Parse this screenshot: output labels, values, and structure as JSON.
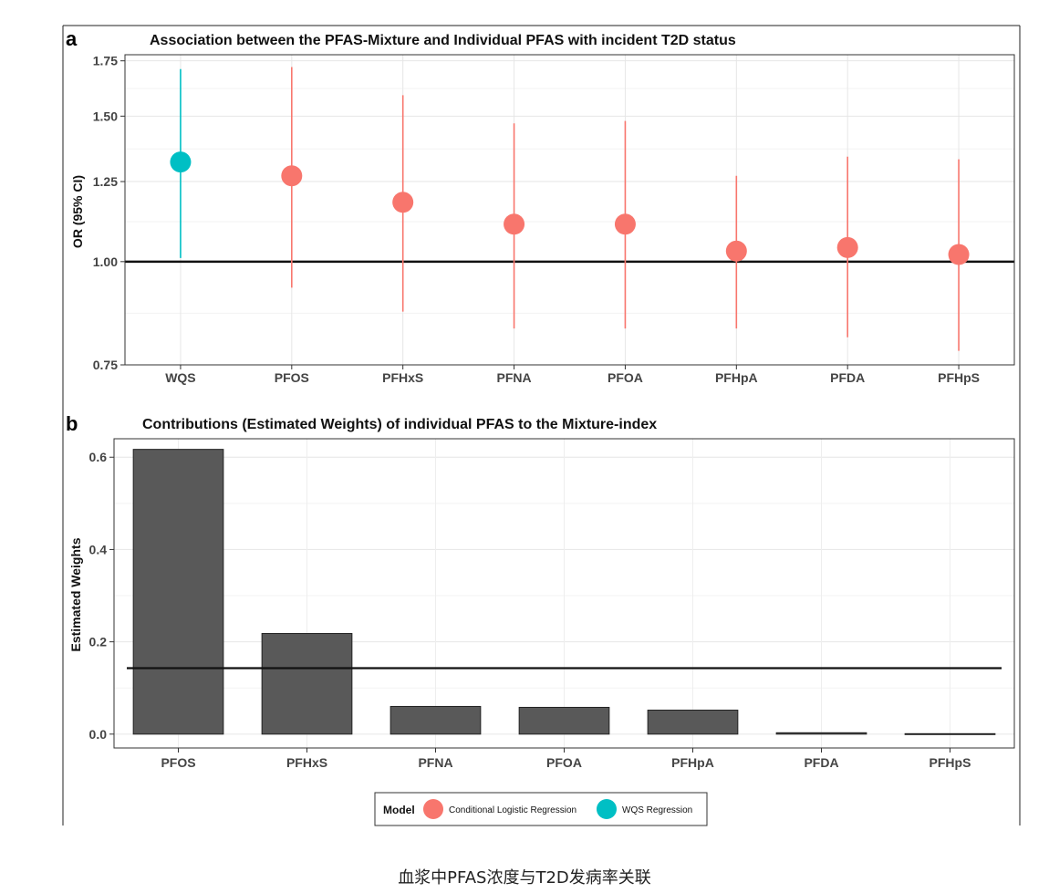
{
  "caption": "血浆中PFAS浓度与T2D发病率关联",
  "legend": {
    "title": "Model",
    "entries": [
      {
        "label": "Conditional Logistic Regression",
        "color": "#F8766D"
      },
      {
        "label": "WQS Regression",
        "color": "#00BFC4"
      }
    ]
  },
  "chart_data": [
    {
      "panel": "a",
      "type": "scatter",
      "title": "Association between the PFAS-Mixture and Individual PFAS with incident T2D status",
      "xlabel": "",
      "ylabel": "OR (95% CI)",
      "scale": "log",
      "ylim": [
        0.75,
        1.78
      ],
      "yticks": [
        "0.75",
        "1.00",
        "1.25",
        "1.50",
        "1.75"
      ],
      "reference_line": 1.0,
      "categories": [
        "WQS",
        "PFOS",
        "PFHxS",
        "PFNA",
        "PFOA",
        "PFHpA",
        "PFDA",
        "PFHpS"
      ],
      "points": [
        {
          "category": "WQS",
          "or": 1.32,
          "lower": 1.01,
          "upper": 1.71,
          "model": "WQS Regression"
        },
        {
          "category": "PFOS",
          "or": 1.27,
          "lower": 0.93,
          "upper": 1.72,
          "model": "Conditional Logistic Regression"
        },
        {
          "category": "PFHxS",
          "or": 1.18,
          "lower": 0.87,
          "upper": 1.59,
          "model": "Conditional Logistic Regression"
        },
        {
          "category": "PFNA",
          "or": 1.11,
          "lower": 0.83,
          "upper": 1.47,
          "model": "Conditional Logistic Regression"
        },
        {
          "category": "PFOA",
          "or": 1.11,
          "lower": 0.83,
          "upper": 1.48,
          "model": "Conditional Logistic Regression"
        },
        {
          "category": "PFHpA",
          "or": 1.03,
          "lower": 0.83,
          "upper": 1.27,
          "model": "Conditional Logistic Regression"
        },
        {
          "category": "PFDA",
          "or": 1.04,
          "lower": 0.81,
          "upper": 1.34,
          "model": "Conditional Logistic Regression"
        },
        {
          "category": "PFHpS",
          "or": 1.02,
          "lower": 0.78,
          "upper": 1.33,
          "model": "Conditional Logistic Regression"
        }
      ]
    },
    {
      "panel": "b",
      "type": "bar",
      "title": "Contributions (Estimated Weights) of individual PFAS to the Mixture-index",
      "xlabel": "",
      "ylabel": "Estimated Weights",
      "ylim": [
        -0.03,
        0.64
      ],
      "yticks": [
        "0.0",
        "0.2",
        "0.4",
        "0.6"
      ],
      "reference_line": 0.143,
      "categories": [
        "PFOS",
        "PFHxS",
        "PFNA",
        "PFOA",
        "PFHpA",
        "PFDA",
        "PFHpS"
      ],
      "values": [
        0.617,
        0.218,
        0.06,
        0.058,
        0.052,
        0.003,
        0.001
      ]
    }
  ]
}
